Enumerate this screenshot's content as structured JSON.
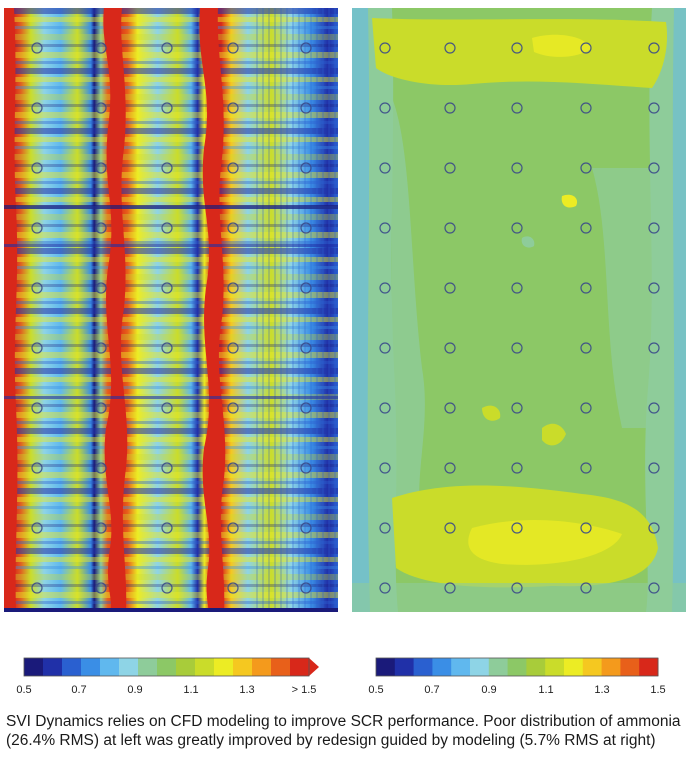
{
  "panels": {
    "left": {
      "rms": "26.4% RMS"
    },
    "right": {
      "rms": "5.7% RMS"
    }
  },
  "colorscale": {
    "colors": [
      "#1a1a7a",
      "#2030a8",
      "#2a60d0",
      "#3a8ee6",
      "#60b8ee",
      "#8ed4e6",
      "#8ecc9a",
      "#8cc866",
      "#a8cc3a",
      "#cadc2a",
      "#ecec24",
      "#f5c820",
      "#f49a1c",
      "#e8601a",
      "#d8281a"
    ],
    "left_ticks": [
      "0.5",
      "0.7",
      "0.9",
      "1.1",
      "1.3",
      "> 1.5"
    ],
    "right_ticks": [
      "0.5",
      "0.7",
      "0.9",
      "1.1",
      "1.3",
      "1.5"
    ]
  },
  "caption": {
    "text": "SVI Dynamics relies on CFD modeling to improve SCR performance. Poor distribution of ammonia (26.4% RMS) at left was greatly improved by redesign guided by modeling (5.7% RMS at right)"
  }
}
